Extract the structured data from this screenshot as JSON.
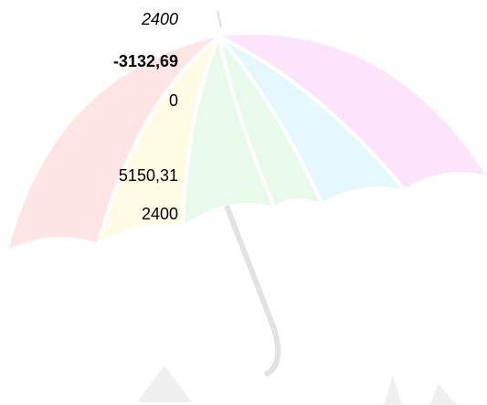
{
  "cells": [
    "2400",
    "-3132,69",
    "0",
    "5150,31",
    "2400"
  ]
}
